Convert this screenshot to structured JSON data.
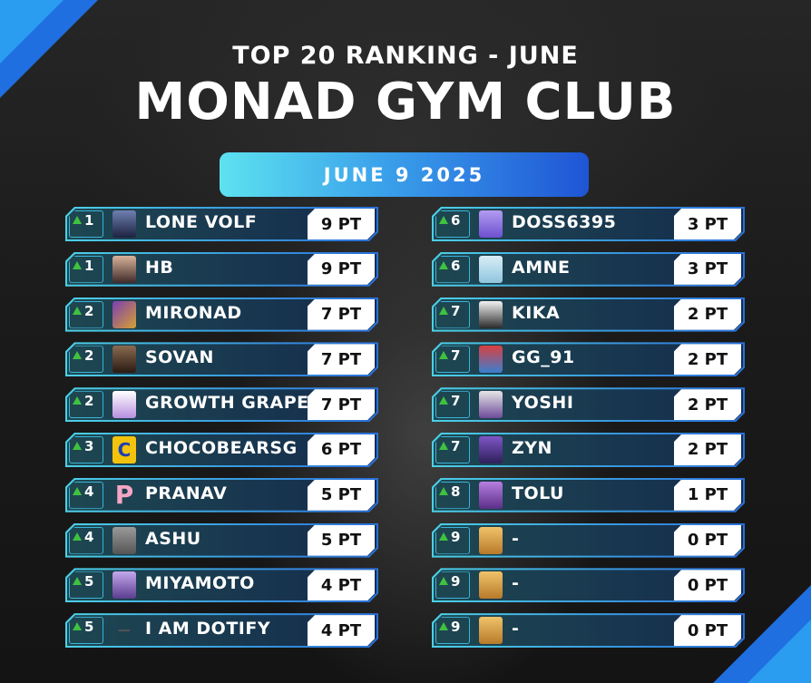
{
  "header": {
    "subtitle": "TOP 20 RANKING - JUNE",
    "title": "MONAD GYM CLUB",
    "date": "JUNE 9 2025"
  },
  "colors": {
    "accent_cyan": "#4cd0e6",
    "accent_blue": "#1f55d6",
    "rank_up_arrow": "#3fc23f"
  },
  "left": [
    {
      "rank": "1",
      "name": "LONE VOLF",
      "points": "9 PT"
    },
    {
      "rank": "1",
      "name": "HB",
      "points": "9 PT"
    },
    {
      "rank": "2",
      "name": "MIRONAD",
      "points": "7 PT"
    },
    {
      "rank": "2",
      "name": "SOVAN",
      "points": "7 PT"
    },
    {
      "rank": "2",
      "name": "GROWTH GRAPE",
      "points": "7 PT"
    },
    {
      "rank": "3",
      "name": "CHOCOBEARSG",
      "points": "6 PT",
      "avatar_text": "C"
    },
    {
      "rank": "4",
      "name": "PRANAV",
      "points": "5 PT",
      "avatar_text": "P"
    },
    {
      "rank": "4",
      "name": "ASHU",
      "points": "5 PT"
    },
    {
      "rank": "5",
      "name": "MIYAMOTO",
      "points": "4 PT"
    },
    {
      "rank": "5",
      "name": "I AM DOTIFY",
      "points": "4 PT",
      "avatar_text": "—"
    }
  ],
  "right": [
    {
      "rank": "6",
      "name": "DOSS6395",
      "points": "3 PT"
    },
    {
      "rank": "6",
      "name": "AMNE",
      "points": "3 PT"
    },
    {
      "rank": "7",
      "name": "KIKA",
      "points": "2 PT"
    },
    {
      "rank": "7",
      "name": "GG_91",
      "points": "2 PT"
    },
    {
      "rank": "7",
      "name": "YOSHI",
      "points": "2 PT"
    },
    {
      "rank": "7",
      "name": "ZYN",
      "points": "2 PT"
    },
    {
      "rank": "8",
      "name": "TOLU",
      "points": "1 PT"
    },
    {
      "rank": "9",
      "name": "-",
      "points": "0 PT"
    },
    {
      "rank": "9",
      "name": "-",
      "points": "0 PT"
    },
    {
      "rank": "9",
      "name": "-",
      "points": "0 PT"
    }
  ]
}
